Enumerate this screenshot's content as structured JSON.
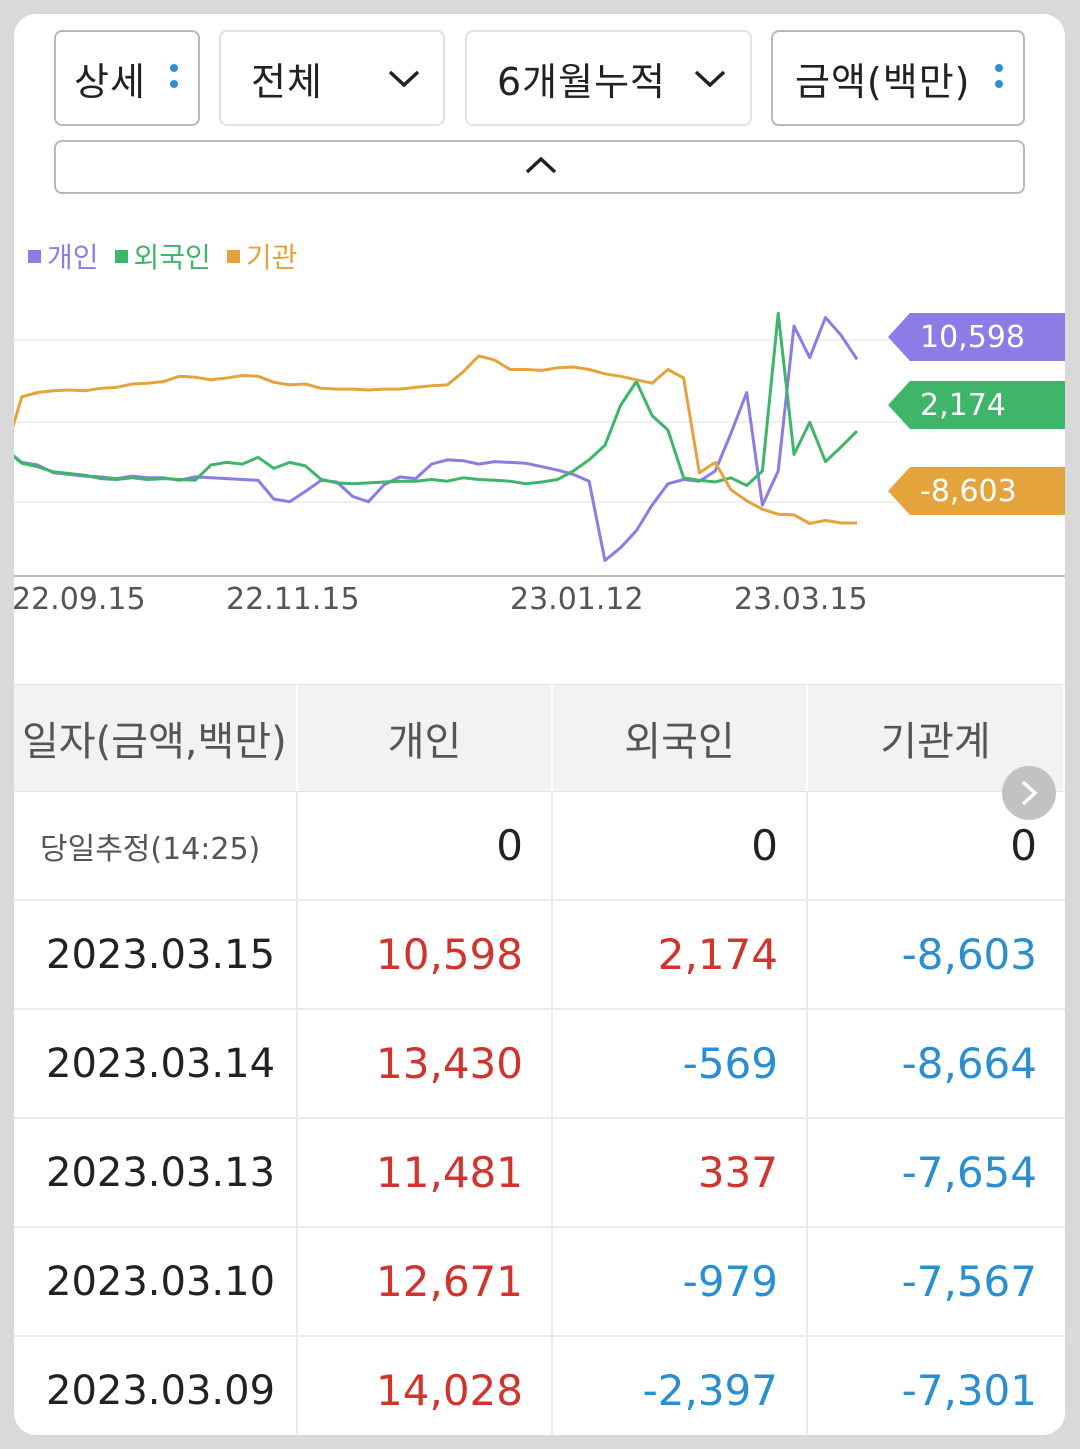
{
  "filters": {
    "detail": "상세",
    "scope": "전체",
    "period": "6개월누적",
    "unit": "금액(백만)"
  },
  "legend": [
    {
      "label": "개인",
      "color": "#8b7ce6"
    },
    {
      "label": "외국인",
      "color": "#3fb56a"
    },
    {
      "label": "기관",
      "color": "#e5a33b"
    }
  ],
  "chart_data": {
    "type": "line",
    "x_ticks": [
      "22.09.15",
      "22.11.15",
      "23.01.12",
      "23.03.15"
    ],
    "grid": true,
    "series": [
      {
        "name": "개인",
        "color": "#8b7ce6",
        "values": [
          0,
          -1500,
          -1800,
          -2700,
          -2900,
          -3100,
          -3200,
          -3400,
          -3100,
          -3300,
          -3300,
          -3600,
          -3200,
          -3300,
          -3400,
          -3500,
          -3600,
          -5800,
          -6100,
          -4900,
          -3600,
          -3800,
          -5500,
          -6100,
          -4100,
          -3200,
          -3400,
          -1700,
          -1200,
          -1300,
          -1700,
          -1400,
          -1500,
          -1600,
          -2000,
          -2400,
          -2900,
          -3700,
          -13000,
          -11500,
          -9500,
          -6500,
          -4000,
          -3500,
          -3700,
          -2500,
          1900,
          6700,
          -6500,
          -2500,
          14500,
          10800,
          15500,
          13400,
          10598
        ]
      },
      {
        "name": "외국인",
        "color": "#3fb56a",
        "values": [
          0,
          -1600,
          -2000,
          -2600,
          -2800,
          -3000,
          -3400,
          -3500,
          -3300,
          -3500,
          -3400,
          -3500,
          -3600,
          -1800,
          -1500,
          -1700,
          -900,
          -2200,
          -1500,
          -1900,
          -3500,
          -3900,
          -4000,
          -3900,
          -3800,
          -3700,
          -3700,
          -3500,
          -3700,
          -3300,
          -3500,
          -3600,
          -3700,
          -4000,
          -3800,
          -3500,
          -2500,
          -1200,
          500,
          5200,
          8000,
          4000,
          2300,
          -3300,
          -3600,
          -3800,
          -3300,
          -4200,
          -2500,
          16000,
          -569,
          3200,
          -1400,
          337,
          2174
        ]
      },
      {
        "name": "기관",
        "color": "#e5a33b",
        "values": [
          0,
          6200,
          6700,
          6900,
          7000,
          6900,
          7200,
          7300,
          7700,
          7800,
          8000,
          8600,
          8500,
          8200,
          8400,
          8700,
          8600,
          7900,
          7600,
          7700,
          7200,
          7100,
          7100,
          7000,
          7100,
          7100,
          7300,
          7500,
          7600,
          9100,
          11000,
          10500,
          9400,
          9400,
          9300,
          9600,
          9700,
          9400,
          8900,
          8600,
          8200,
          7800,
          9400,
          8400,
          -2700,
          -1500,
          -4700,
          -6000,
          -7000,
          -7567,
          -7654,
          -8664,
          -8300,
          -8603,
          -8603
        ]
      }
    ],
    "end_labels": [
      "10,598",
      "2,174",
      "-8,603"
    ]
  },
  "table": {
    "headers": [
      "일자(금액,백만)",
      "개인",
      "외국인",
      "기관계"
    ],
    "rows": [
      {
        "date": "당일추정(14:25)",
        "individual": "0",
        "foreign": "0",
        "institution": "0"
      },
      {
        "date": "2023.03.15",
        "individual": "10,598",
        "foreign": "2,174",
        "institution": "-8,603"
      },
      {
        "date": "2023.03.14",
        "individual": "13,430",
        "foreign": "-569",
        "institution": "-8,664"
      },
      {
        "date": "2023.03.13",
        "individual": "11,481",
        "foreign": "337",
        "institution": "-7,654"
      },
      {
        "date": "2023.03.10",
        "individual": "12,671",
        "foreign": "-979",
        "institution": "-7,567"
      },
      {
        "date": "2023.03.09",
        "individual": "14,028",
        "foreign": "-2,397",
        "institution": "-7,301"
      }
    ]
  }
}
